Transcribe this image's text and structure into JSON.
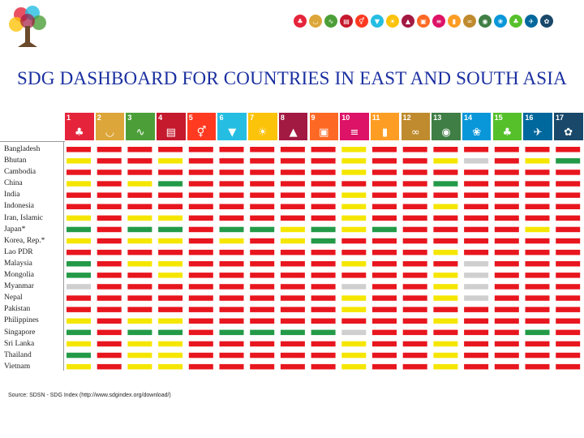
{
  "title": "SDG DASHBOARD FOR COUNTRIES IN EAST AND SOUTH ASIA",
  "source": "Source: SDSN - SDG Index (http://www.sdgindex.org/download/)",
  "colors": {
    "red": "#e8161e",
    "yellow": "#f5e600",
    "green": "#239a47",
    "grey": "#cfcfcf",
    "title": "#1a2fa0"
  },
  "goals": [
    {
      "num": "1",
      "color": "#e5243b",
      "icon": "family-icon"
    },
    {
      "num": "2",
      "color": "#dda63a",
      "icon": "bowl-icon"
    },
    {
      "num": "3",
      "color": "#4c9f38",
      "icon": "heartbeat-icon"
    },
    {
      "num": "4",
      "color": "#c5192d",
      "icon": "book-icon"
    },
    {
      "num": "5",
      "color": "#ff3a21",
      "icon": "gender-icon"
    },
    {
      "num": "6",
      "color": "#26bde2",
      "icon": "water-drop-icon"
    },
    {
      "num": "7",
      "color": "#fcc30b",
      "icon": "sun-power-icon"
    },
    {
      "num": "8",
      "color": "#a21942",
      "icon": "growth-chart-icon"
    },
    {
      "num": "9",
      "color": "#fd6925",
      "icon": "cubes-icon"
    },
    {
      "num": "10",
      "color": "#dd1367",
      "icon": "equality-icon"
    },
    {
      "num": "11",
      "color": "#fd9d24",
      "icon": "buildings-icon"
    },
    {
      "num": "12",
      "color": "#bf8b2e",
      "icon": "infinity-icon"
    },
    {
      "num": "13",
      "color": "#3f7e44",
      "icon": "eye-globe-icon"
    },
    {
      "num": "14",
      "color": "#0a97d9",
      "icon": "fish-icon"
    },
    {
      "num": "15",
      "color": "#56c02b",
      "icon": "tree-icon"
    },
    {
      "num": "16",
      "color": "#00689d",
      "icon": "dove-icon"
    },
    {
      "num": "17",
      "color": "#19486a",
      "icon": "wheel-icon"
    }
  ],
  "chart_data": {
    "type": "heatmap",
    "legend": {
      "R": "red",
      "Y": "yellow",
      "G": "green",
      "N": "grey"
    },
    "rows": [
      {
        "country": "Bangladesh",
        "cells": "RRRRRRRRRYRRRRRRR"
      },
      {
        "country": "Bhutan",
        "cells": "YRRYRRRRRYRRYNRYG"
      },
      {
        "country": "Cambodia",
        "cells": "RRRRRRRRRYRRRRRRR"
      },
      {
        "country": "China",
        "cells": "YRYGRRRRRRRRGRRRR"
      },
      {
        "country": "India",
        "cells": "RRRRRRRRRYRRRRRRR"
      },
      {
        "country": "Indonesia",
        "cells": "RRRRRRRRRYRRYRRRR"
      },
      {
        "country": "Iran, Islamic",
        "cells": "YRYYRRRRRYRRRRRRR"
      },
      {
        "country": "Japan*",
        "cells": "GRGGRGGYGYGRRRRYR"
      },
      {
        "country": "Korea, Rep.*",
        "cells": "YRYYRYRYGRRRRRRRR"
      },
      {
        "country": "Lao PDR",
        "cells": "RRRRRRRRRRRRYRRRR"
      },
      {
        "country": "Malaysia",
        "cells": "GRYYRRRRRYRRRNRRR"
      },
      {
        "country": "Mongolia",
        "cells": "GRRYRRRRRRRRYNRRR"
      },
      {
        "country": "Myanmar",
        "cells": "NRRRRRRRRNRRYNRRR"
      },
      {
        "country": "Nepal",
        "cells": "RRRRRRRRRYRRYNRRR"
      },
      {
        "country": "Pakistan",
        "cells": "RRRRRRRRRYRRRRRRR"
      },
      {
        "country": "Philippines",
        "cells": "YRYYRRRRRRRRYRRRR"
      },
      {
        "country": "Singapore",
        "cells": "GRGGRGGGGNRRRRRGR"
      },
      {
        "country": "Sri Lanka",
        "cells": "YRYYRRRRRYRRYRRRR"
      },
      {
        "country": "Thailand",
        "cells": "GRYYRRRRRYRRYRRRR"
      },
      {
        "country": "Vietnam",
        "cells": "YRYYRRRRRYRRYRRRR"
      }
    ]
  }
}
